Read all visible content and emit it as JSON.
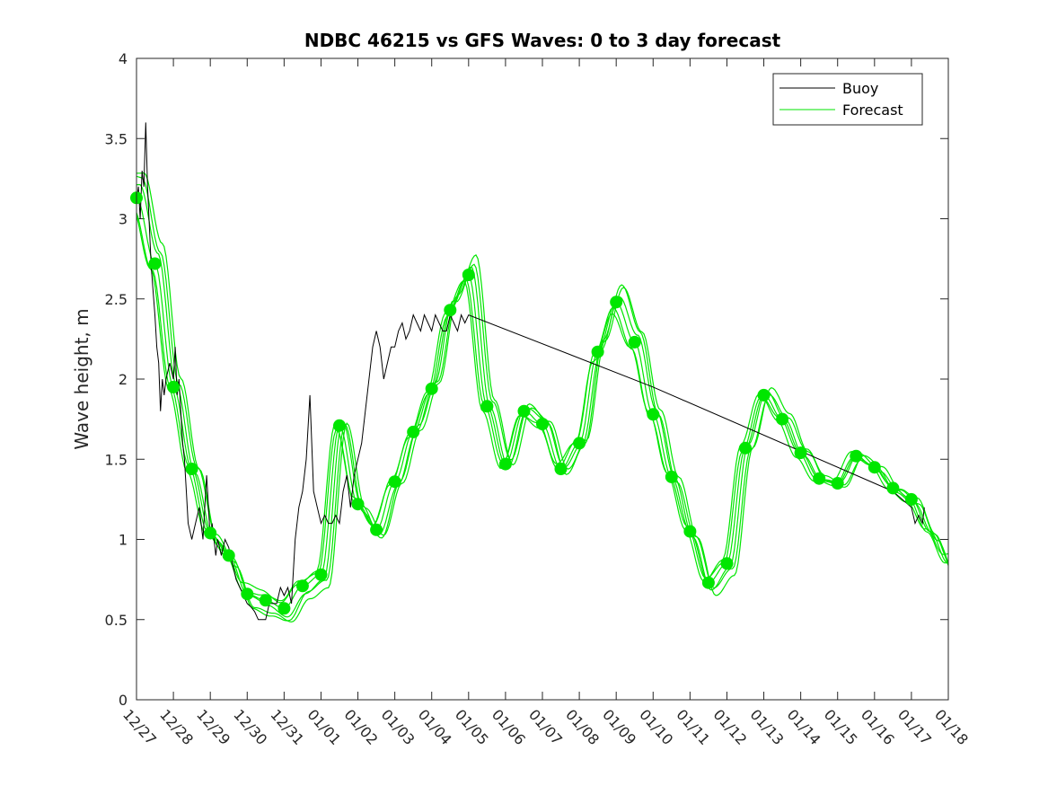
{
  "chart_data": {
    "type": "line",
    "title": "NDBC 46215 vs GFS Waves: 0 to 3 day forecast",
    "xlabel": "",
    "ylabel": "Wave height, m",
    "ylim": [
      0,
      4
    ],
    "yticks": [
      "0",
      "0.5",
      "1",
      "1.5",
      "2",
      "2.5",
      "3",
      "3.5",
      "4"
    ],
    "xlim": [
      0,
      22
    ],
    "xticks": [
      "12/27",
      "12/28",
      "12/29",
      "12/30",
      "12/31",
      "01/01",
      "01/02",
      "01/03",
      "01/04",
      "01/05",
      "01/06",
      "01/07",
      "01/08",
      "01/09",
      "01/10",
      "01/11",
      "01/12",
      "01/13",
      "01/14",
      "01/15",
      "01/16",
      "01/17",
      "01/18"
    ],
    "legend": {
      "position": "top-right",
      "entries": [
        {
          "label": "Buoy",
          "color": "#000000"
        },
        {
          "label": "Forecast",
          "color": "#00e600"
        }
      ]
    },
    "colors": {
      "buoy": "#000000",
      "forecast": "#00e600",
      "marker": "#00e600"
    },
    "series": [
      {
        "name": "Buoy",
        "x": [
          0.0,
          0.05,
          0.1,
          0.15,
          0.2,
          0.25,
          0.3,
          0.4,
          0.5,
          0.55,
          0.6,
          0.65,
          0.7,
          0.75,
          0.8,
          0.9,
          1.0,
          1.05,
          1.1,
          1.15,
          1.2,
          1.25,
          1.3,
          1.35,
          1.4,
          1.5,
          1.6,
          1.7,
          1.8,
          1.9,
          2.0,
          2.05,
          2.1,
          2.15,
          2.2,
          2.3,
          2.4,
          2.5,
          2.6,
          2.7,
          2.8,
          2.9,
          3.0,
          3.1,
          3.2,
          3.3,
          3.4,
          3.5,
          3.6,
          3.7,
          3.8,
          3.9,
          4.0,
          4.1,
          4.2,
          4.3,
          4.4,
          4.5,
          4.6,
          4.7,
          4.8,
          4.9,
          5.0,
          5.1,
          5.2,
          5.3,
          5.4,
          5.5,
          5.55,
          5.6,
          5.7,
          5.75,
          5.8,
          5.9,
          6.0,
          6.1,
          6.2,
          6.3,
          6.4,
          6.5,
          6.6,
          6.7,
          6.8,
          6.9,
          7.0,
          7.1,
          7.2,
          7.3,
          7.4,
          7.5,
          7.6,
          7.7,
          7.8,
          7.9,
          8.0,
          8.1,
          8.2,
          8.3,
          8.4,
          8.5,
          8.6,
          8.7,
          8.8,
          8.9,
          9.0,
          14.0,
          20.0,
          20.5,
          21.0,
          21.1,
          21.2,
          21.3,
          21.35
        ],
        "values": [
          3.1,
          3.2,
          3.0,
          3.3,
          3.2,
          3.6,
          3.2,
          2.7,
          2.4,
          2.2,
          2.1,
          1.8,
          2.0,
          1.9,
          2.0,
          2.1,
          2.0,
          2.2,
          1.9,
          2.0,
          1.8,
          1.6,
          1.5,
          1.3,
          1.1,
          1.0,
          1.1,
          1.2,
          1.0,
          1.4,
          1.0,
          1.1,
          1.0,
          0.9,
          1.0,
          0.9,
          1.0,
          0.95,
          0.85,
          0.75,
          0.7,
          0.65,
          0.6,
          0.58,
          0.55,
          0.5,
          0.5,
          0.5,
          0.6,
          0.6,
          0.6,
          0.7,
          0.65,
          0.7,
          0.6,
          1.0,
          1.2,
          1.3,
          1.5,
          1.9,
          1.3,
          1.2,
          1.1,
          1.15,
          1.1,
          1.1,
          1.15,
          1.1,
          1.2,
          1.3,
          1.4,
          1.3,
          1.2,
          1.4,
          1.5,
          1.6,
          1.8,
          2.0,
          2.2,
          2.3,
          2.2,
          2.0,
          2.1,
          2.2,
          2.2,
          2.3,
          2.35,
          2.25,
          2.3,
          2.4,
          2.35,
          2.3,
          2.4,
          2.35,
          2.3,
          2.4,
          2.35,
          2.3,
          2.3,
          2.4,
          2.35,
          2.3,
          2.4,
          2.35,
          2.4,
          1.95,
          1.35,
          1.3,
          1.2,
          1.1,
          1.15,
          1.1,
          1.2
        ]
      },
      {
        "name": "Forecast",
        "x": [
          0.0,
          0.5,
          1.0,
          1.5,
          2.0,
          2.5,
          3.0,
          3.5,
          4.0,
          4.5,
          5.0,
          5.5,
          6.0,
          6.5,
          7.0,
          7.5,
          8.0,
          8.5,
          9.0,
          9.5,
          10.0,
          10.5,
          11.0,
          11.5,
          12.0,
          12.5,
          13.0,
          13.5,
          14.0,
          14.5,
          15.0,
          15.5,
          16.0,
          16.5,
          17.0,
          17.5,
          18.0,
          18.5,
          19.0,
          19.5,
          20.0,
          20.5,
          21.0,
          21.5,
          22.0
        ],
        "values": [
          3.13,
          2.72,
          1.95,
          1.44,
          1.04,
          0.9,
          0.66,
          0.62,
          0.57,
          0.71,
          0.78,
          1.71,
          1.22,
          1.06,
          1.36,
          1.67,
          1.94,
          2.43,
          2.65,
          1.83,
          1.47,
          1.8,
          1.72,
          1.44,
          1.6,
          2.17,
          2.48,
          2.23,
          1.78,
          1.39,
          1.05,
          0.73,
          0.85,
          1.57,
          1.9,
          1.75,
          1.54,
          1.38,
          1.35,
          1.52,
          1.45,
          1.32,
          1.25,
          1.05,
          0.85
        ]
      }
    ]
  }
}
